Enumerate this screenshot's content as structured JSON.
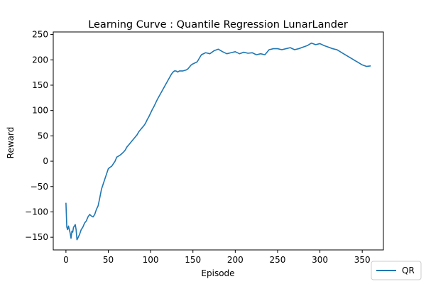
{
  "chart_data": {
    "type": "line",
    "title": "Learning Curve : Quantile Regression LunarLander",
    "xlabel": "Episode",
    "ylabel": "Reward",
    "xlim": [
      -15,
      375
    ],
    "ylim": [
      -175,
      255
    ],
    "xticks": [
      0,
      50,
      100,
      150,
      200,
      250,
      300,
      350
    ],
    "yticks": [
      -150,
      -100,
      -50,
      0,
      50,
      100,
      150,
      200,
      250
    ],
    "grid": false,
    "legend_position": "outside-bottom-right",
    "series": [
      {
        "name": "QR",
        "color": "#1f77b4",
        "x": [
          0,
          1,
          2,
          3,
          4,
          5,
          6,
          7,
          8,
          9,
          10,
          11,
          12,
          13,
          14,
          15,
          16,
          17,
          18,
          20,
          22,
          24,
          26,
          28,
          30,
          32,
          34,
          36,
          38,
          40,
          42,
          44,
          46,
          48,
          50,
          52,
          54,
          56,
          58,
          60,
          62,
          64,
          66,
          68,
          70,
          72,
          74,
          76,
          78,
          80,
          82,
          84,
          86,
          88,
          90,
          92,
          94,
          96,
          98,
          100,
          102,
          104,
          106,
          108,
          110,
          112,
          114,
          116,
          118,
          120,
          122,
          124,
          126,
          128,
          130,
          132,
          134,
          136,
          138,
          140,
          142,
          144,
          146,
          148,
          150,
          155,
          160,
          165,
          170,
          175,
          180,
          185,
          190,
          195,
          200,
          205,
          210,
          215,
          220,
          225,
          230,
          235,
          240,
          245,
          250,
          255,
          260,
          265,
          270,
          275,
          280,
          285,
          290,
          295,
          300,
          305,
          310,
          315,
          320,
          325,
          330,
          335,
          340,
          345,
          350,
          355,
          360
        ],
        "y": [
          -82,
          -130,
          -135,
          -128,
          -135,
          -142,
          -152,
          -138,
          -140,
          -130,
          -128,
          -125,
          -135,
          -155,
          -152,
          -148,
          -145,
          -140,
          -135,
          -130,
          -122,
          -118,
          -110,
          -105,
          -108,
          -110,
          -105,
          -95,
          -88,
          -72,
          -55,
          -45,
          -35,
          -25,
          -15,
          -12,
          -10,
          -5,
          0,
          8,
          10,
          12,
          15,
          18,
          22,
          28,
          32,
          36,
          40,
          44,
          48,
          52,
          58,
          62,
          66,
          70,
          75,
          82,
          88,
          95,
          102,
          108,
          115,
          122,
          128,
          134,
          140,
          146,
          152,
          158,
          164,
          170,
          175,
          178,
          178,
          176,
          178,
          178,
          178,
          179,
          180,
          182,
          186,
          190,
          192,
          196,
          210,
          214,
          212,
          218,
          221,
          216,
          212,
          214,
          216,
          212,
          215,
          213,
          214,
          210,
          212,
          210,
          220,
          222,
          222,
          220,
          222,
          224,
          220,
          222,
          225,
          228,
          233,
          230,
          232,
          228,
          225,
          222,
          220,
          215,
          210,
          205,
          200,
          195,
          190,
          187,
          188
        ]
      }
    ]
  }
}
